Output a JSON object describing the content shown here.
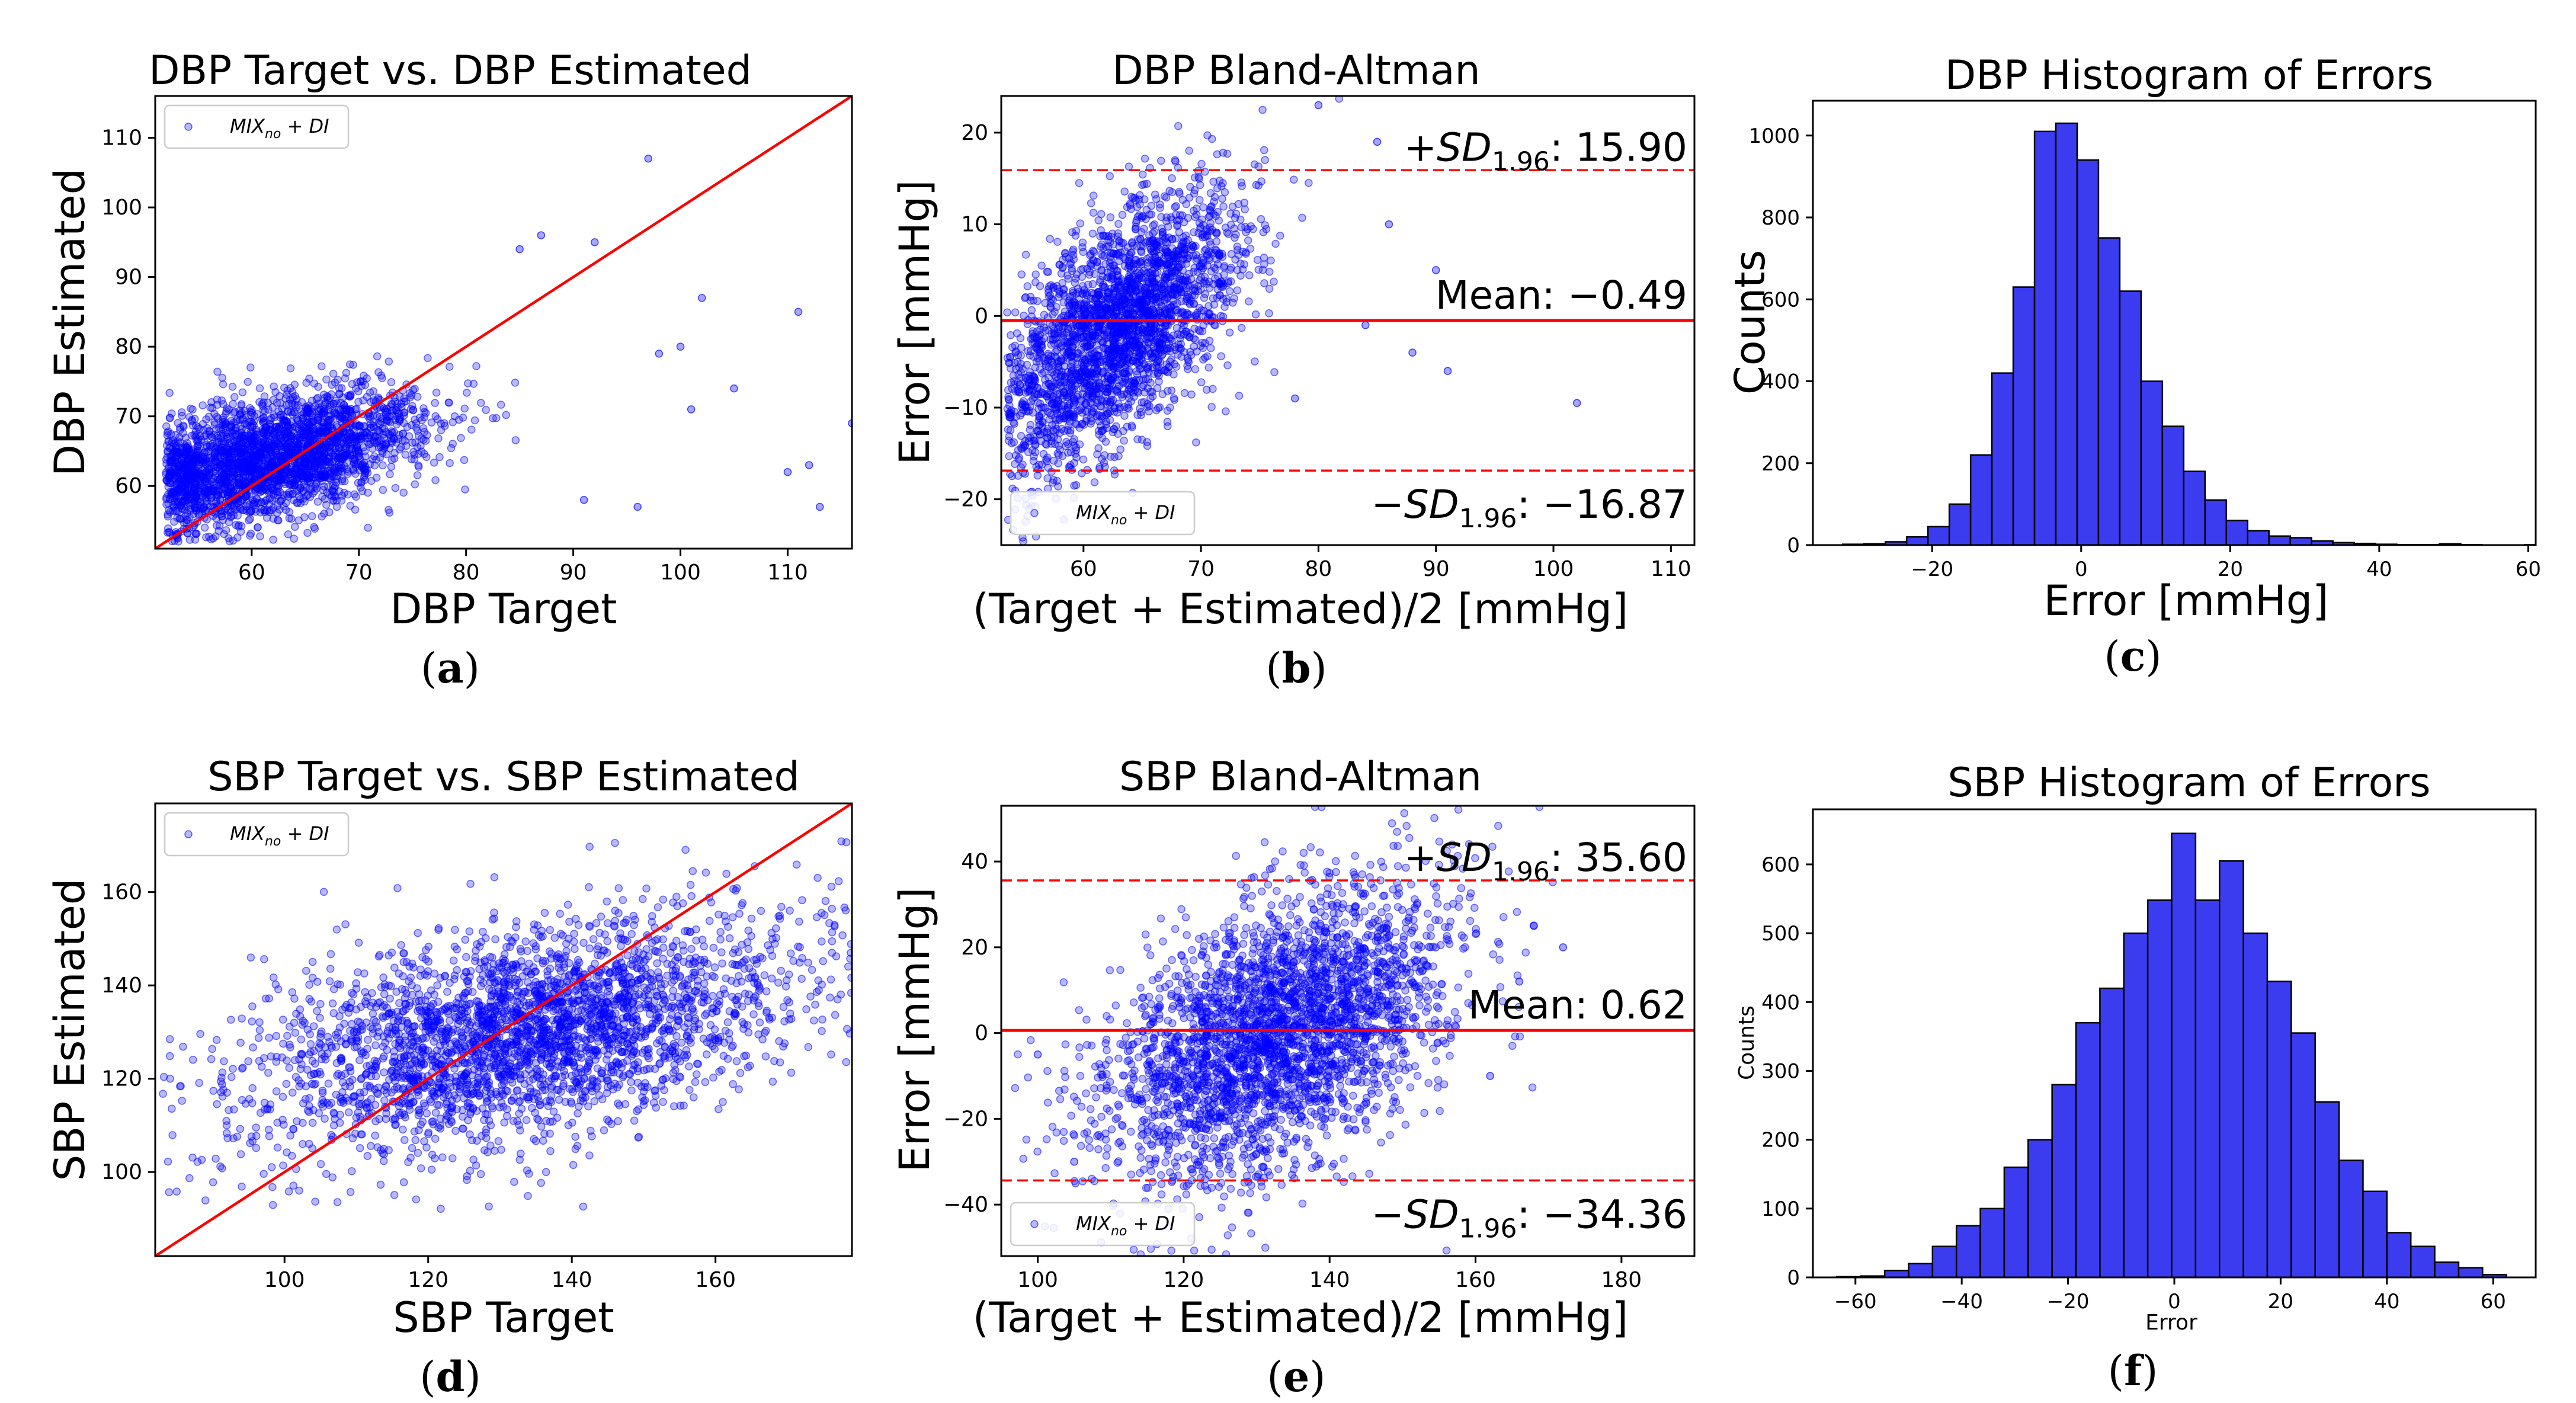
{
  "colors": {
    "scatter": "#0000ff",
    "bar_fill": "#3b3bf0",
    "bar_edge": "#000000",
    "identity_line": "#ff0000",
    "limit_line": "#ff0000"
  },
  "chart_data": [
    {
      "id": "a",
      "type": "scatter",
      "title": "DBP Target vs. DBP Estimated",
      "xlabel": "DBP Target",
      "ylabel": "DBP Estimated",
      "caption_open": "(",
      "caption_letter": "a",
      "caption_close": ")",
      "xlim": [
        51,
        116
      ],
      "ylim": [
        51,
        116
      ],
      "xticks": [
        60,
        70,
        80,
        90,
        100,
        110
      ],
      "yticks": [
        60,
        70,
        80,
        90,
        100,
        110
      ],
      "legend": {
        "label": "MIX_no + DI",
        "base": "MIX",
        "sub": "no",
        "suffix": " + DI",
        "loc": "upper-left"
      },
      "identity_line": true,
      "cloud": {
        "n": 2600,
        "x_mean": 62,
        "x_sd": 7,
        "x_min": 52,
        "x_max": 116,
        "slope": 0.33,
        "y_offset": 64,
        "y_noise": 4.2,
        "y_min": 52,
        "y_max": 110
      },
      "highlighted_points": [
        [
          97,
          107
        ],
        [
          85,
          94
        ],
        [
          87,
          96
        ],
        [
          92,
          95
        ],
        [
          100,
          80
        ],
        [
          102,
          87
        ],
        [
          98,
          79
        ],
        [
          101,
          71
        ],
        [
          105,
          74
        ],
        [
          111,
          85
        ],
        [
          110,
          62
        ],
        [
          112,
          63
        ],
        [
          113,
          57
        ],
        [
          116,
          69
        ],
        [
          91,
          58
        ],
        [
          96,
          57
        ]
      ]
    },
    {
      "id": "b",
      "type": "scatter",
      "title": "DBP Bland-Altman",
      "xlabel": "(Target + Estimated)/2 [mmHg]",
      "ylabel": "Error [mmHg]",
      "caption_open": "(",
      "caption_letter": "b",
      "caption_close": ")",
      "xlim": [
        53,
        112
      ],
      "ylim": [
        -25,
        24
      ],
      "xticks": [
        60,
        70,
        80,
        90,
        100,
        110
      ],
      "yticks": [
        -20,
        -10,
        0,
        10,
        20
      ],
      "legend": {
        "label": "MIX_no + DI",
        "base": "MIX",
        "sub": "no",
        "suffix": " + DI",
        "loc": "lower-left"
      },
      "mean": -0.49,
      "upper_limit": 15.9,
      "lower_limit": -16.87,
      "annotations": {
        "upper_prefix": "+SD",
        "upper_sub": "1.96",
        "upper_value": ": 15.90",
        "mean_text": "Mean: −0.49",
        "lower_prefix": "−SD",
        "lower_sub": "1.96",
        "lower_value": ": −16.87"
      },
      "cloud": {
        "n": 2600,
        "x_mean": 63,
        "x_sd": 5,
        "x_min": 53.5,
        "x_max": 100,
        "slope": 0.9,
        "slope_center": 63,
        "y_offset": -1.5,
        "y_noise": 6,
        "y_min": -25,
        "y_max": 24
      },
      "highlighted_points": [
        [
          102,
          -9.5
        ],
        [
          91,
          -6
        ],
        [
          88,
          -4
        ],
        [
          86,
          10
        ],
        [
          85,
          19
        ],
        [
          90,
          5
        ],
        [
          84,
          -1
        ],
        [
          78,
          -9
        ],
        [
          80,
          23
        ]
      ]
    },
    {
      "id": "c",
      "type": "bar",
      "title": "DBP Histogram of Errors",
      "xlabel": "Error [mmHg]",
      "ylabel": "Counts",
      "caption_open": "(",
      "caption_letter": "c",
      "caption_close": ")",
      "xlim": [
        -36,
        61
      ],
      "ylim": [
        0,
        1085
      ],
      "xticks": [
        -20,
        0,
        20,
        40,
        60
      ],
      "yticks": [
        0,
        200,
        400,
        600,
        800,
        1000
      ],
      "bin_start": -32,
      "bin_width": 2.86,
      "counts": [
        2,
        3,
        8,
        20,
        45,
        100,
        220,
        420,
        630,
        1010,
        1030,
        940,
        750,
        620,
        400,
        290,
        180,
        110,
        60,
        35,
        22,
        18,
        10,
        6,
        4,
        2,
        1,
        1,
        3,
        1,
        0,
        0,
        1
      ]
    },
    {
      "id": "d",
      "type": "scatter",
      "title": "SBP Target vs. SBP Estimated",
      "xlabel": "SBP Target",
      "ylabel": "SBP Estimated",
      "caption_open": "(",
      "caption_letter": "d",
      "caption_close": ")",
      "xlim": [
        82,
        179
      ],
      "ylim": [
        82,
        179
      ],
      "xticks": [
        100,
        120,
        140,
        160
      ],
      "yticks": [
        100,
        120,
        140,
        160
      ],
      "legend": {
        "label": "MIX_no + DI",
        "base": "MIX",
        "sub": "no",
        "suffix": " + DI",
        "loc": "upper-left"
      },
      "identity_line": true,
      "cloud": {
        "n": 3000,
        "x_mean": 133,
        "x_sd": 19,
        "x_min": 83,
        "x_max": 179,
        "slope": 0.3,
        "slope_center": 133,
        "y_offset": 130,
        "y_noise": 11,
        "y_min": 92,
        "y_max": 172
      },
      "highlighted_points": []
    },
    {
      "id": "e",
      "type": "scatter",
      "title": "SBP Bland-Altman",
      "xlabel": "(Target + Estimated)/2 [mmHg]",
      "ylabel": "Error [mmHg]",
      "caption_open": "(",
      "caption_letter": "e",
      "caption_close": ")",
      "xlim": [
        95,
        190
      ],
      "ylim": [
        -52,
        53
      ],
      "xticks": [
        100,
        120,
        140,
        160,
        180
      ],
      "yticks": [
        -40,
        -20,
        0,
        20,
        40
      ],
      "legend": {
        "label": "MIX_no + DI",
        "base": "MIX",
        "sub": "no",
        "suffix": " + DI",
        "loc": "lower-left"
      },
      "mean": 0.62,
      "upper_limit": 35.6,
      "lower_limit": -34.36,
      "annotations": {
        "upper_prefix": "+SD",
        "upper_sub": "1.96",
        "upper_value": ": 35.60",
        "mean_text": "Mean: 0.62",
        "lower_prefix": "−SD",
        "lower_sub": "1.96",
        "lower_value": ": −34.36"
      },
      "cloud": {
        "n": 3000,
        "x_mean": 133,
        "x_sd": 12,
        "x_min": 96,
        "x_max": 172,
        "slope": 0.7,
        "slope_center": 133,
        "y_offset": 0,
        "y_noise": 15,
        "y_min": -52,
        "y_max": 53
      },
      "highlighted_points": [
        [
          166,
          12
        ],
        [
          168,
          25
        ],
        [
          172,
          20
        ],
        [
          162,
          -10
        ],
        [
          105,
          -30
        ],
        [
          100,
          -5
        ]
      ]
    },
    {
      "id": "f",
      "type": "bar",
      "title": "SBP Histogram of Errors",
      "xlabel": "Error",
      "ylabel": "Counts",
      "caption_open": "(",
      "caption_letter": "f",
      "caption_close": ")",
      "xlim": [
        -68,
        68
      ],
      "ylim": [
        0,
        680
      ],
      "xticks": [
        -60,
        -40,
        -20,
        0,
        20,
        40,
        60
      ],
      "yticks": [
        0,
        100,
        200,
        300,
        400,
        500,
        600
      ],
      "bin_start": -63.5,
      "bin_width": 4.5,
      "counts": [
        1,
        2,
        10,
        20,
        45,
        75,
        100,
        160,
        200,
        280,
        370,
        420,
        500,
        548,
        645,
        548,
        605,
        500,
        430,
        355,
        255,
        170,
        125,
        65,
        45,
        22,
        14,
        4
      ]
    }
  ]
}
